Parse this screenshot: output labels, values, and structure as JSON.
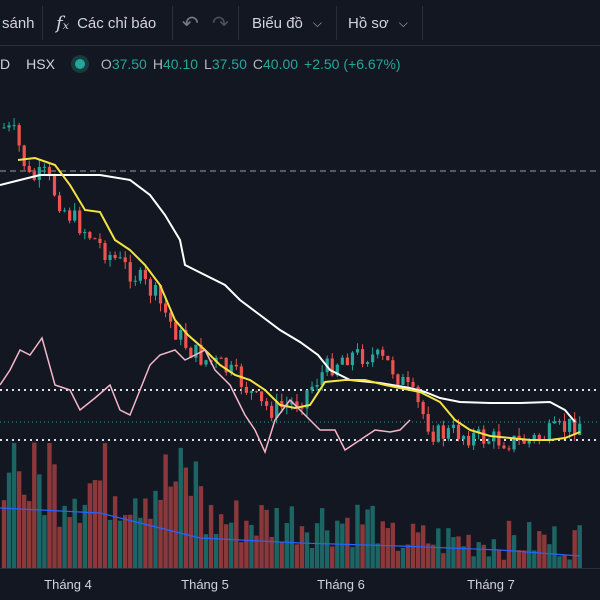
{
  "toolbar": {
    "compare_label": "sánh",
    "indicators_label": "Các chỉ báo",
    "chart_type_label": "Biểu đồ",
    "profile_label": "Hồ sơ"
  },
  "legend": {
    "symbol_suffix": "D",
    "exchange": "HSX",
    "open_key": "O",
    "open": "37.50",
    "high_key": "H",
    "high": "40.10",
    "low_key": "L",
    "low": "37.50",
    "close_key": "C",
    "close": "40.00",
    "change": "+2.50 (+6.67%)"
  },
  "colors": {
    "up": "#26a69a",
    "down": "#ef5350",
    "fast_line": "#f5e342",
    "slow_line": "#ffffff",
    "osc_line": "#f4b6c8"
  },
  "chart_data": {
    "type": "candlestick",
    "x_ticks": [
      "Tháng 4",
      "Tháng 5",
      "Tháng 6",
      "Tháng 7"
    ],
    "last_bar": {
      "open": 37.5,
      "high": 40.1,
      "low": 37.5,
      "close": 40.0
    },
    "series": [
      {
        "values": []
      }
    ],
    "grid": false
  }
}
